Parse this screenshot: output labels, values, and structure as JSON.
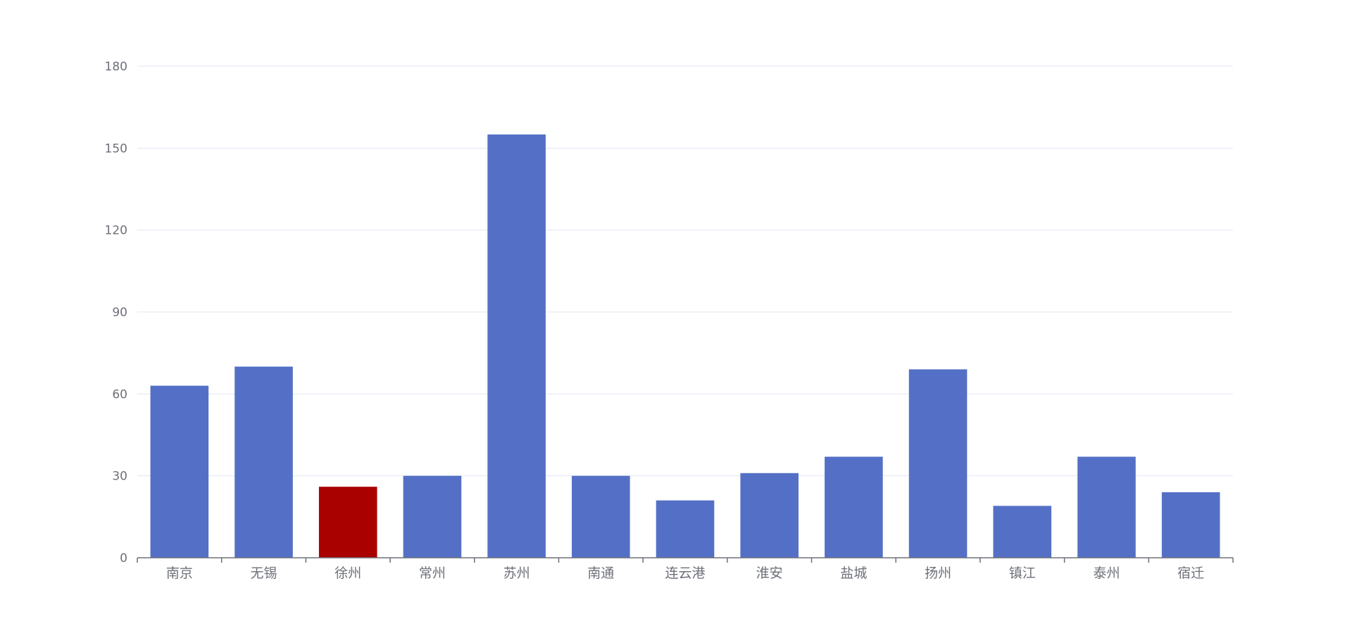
{
  "chart_data": {
    "type": "bar",
    "categories": [
      "南京",
      "无锡",
      "徐州",
      "常州",
      "苏州",
      "南通",
      "连云港",
      "淮安",
      "盐城",
      "扬州",
      "镇江",
      "泰州",
      "宿迁"
    ],
    "values": [
      63,
      70,
      26,
      30,
      155,
      30,
      21,
      31,
      37,
      69,
      19,
      37,
      24
    ],
    "highlight_category": "徐州",
    "ylim": [
      0,
      180
    ],
    "yticks": [
      0,
      30,
      60,
      90,
      120,
      150,
      180
    ],
    "grid": true,
    "legend": "none",
    "colors": {
      "bar": "#5470c6",
      "highlight": "#a90000",
      "grid": "#e0e6f1",
      "axis": "#6e7079",
      "label": "#6e7079"
    }
  }
}
